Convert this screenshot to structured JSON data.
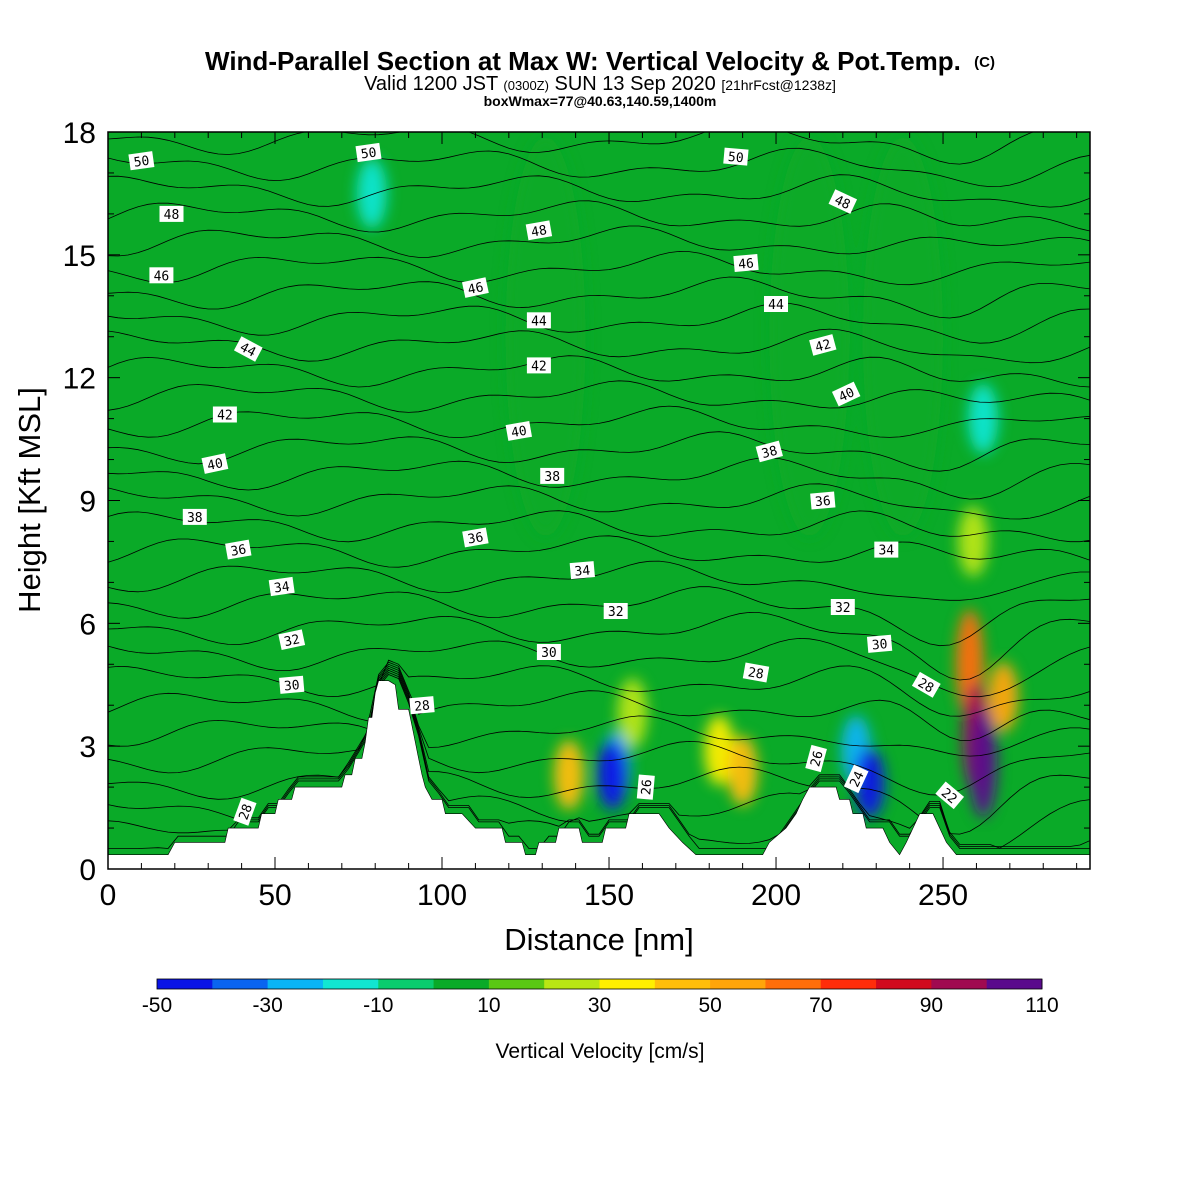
{
  "chart_data": {
    "type": "heatmap",
    "title": "Wind-Parallel Section at Max W: Vertical Velocity & Pot.Temp.",
    "title_mark": "(C)",
    "subtitle_parts": {
      "valid": "Valid 1200 JST",
      "utc": "(0300Z)",
      "date": "SUN 13 Sep 2020",
      "forecast": "[21hrFcst@1238z]"
    },
    "subtitle2": "boxWmax=77@40.63,140.59,1400m",
    "xlabel": "Distance [nm]",
    "ylabel": "Height [Kft MSL]",
    "xlim": [
      0,
      294
    ],
    "ylim": [
      0,
      18
    ],
    "x_ticks": [
      0,
      50,
      100,
      150,
      200,
      250
    ],
    "y_ticks": [
      0,
      3,
      6,
      9,
      12,
      15,
      18
    ],
    "colorbar": {
      "title": "Vertical Velocity [cm/s]",
      "boundaries": [
        -50,
        -40,
        -30,
        -20,
        -10,
        0,
        10,
        20,
        30,
        40,
        50,
        60,
        70,
        80,
        90,
        100,
        110
      ],
      "tick_labels": [
        -50,
        -30,
        -10,
        10,
        30,
        50,
        70,
        90,
        110
      ],
      "colors": [
        "#0a14e6",
        "#0a64f0",
        "#0ab4f5",
        "#12e6d2",
        "#0acd6e",
        "#0aaa28",
        "#5ac814",
        "#b9e614",
        "#ffef00",
        "#ffbe0a",
        "#ffa50a",
        "#ff6e0a",
        "#ff2d0a",
        "#d20a1e",
        "#a00a50",
        "#5a0a8c"
      ]
    },
    "terrain_height_kft": [
      [
        0,
        0.35
      ],
      [
        18,
        0.35
      ],
      [
        20,
        0.65
      ],
      [
        35,
        0.65
      ],
      [
        36,
        1.0
      ],
      [
        45,
        1.0
      ],
      [
        46,
        1.35
      ],
      [
        50,
        1.35
      ],
      [
        51,
        1.7
      ],
      [
        55,
        1.7
      ],
      [
        56,
        2.0
      ],
      [
        70,
        2.0
      ],
      [
        71,
        2.3
      ],
      [
        73,
        2.3
      ],
      [
        74,
        2.7
      ],
      [
        76,
        2.7
      ],
      [
        77,
        3.1
      ],
      [
        78,
        3.7
      ],
      [
        79,
        3.7
      ],
      [
        80,
        4.3
      ],
      [
        81,
        4.6
      ],
      [
        84,
        4.6
      ],
      [
        86,
        4.5
      ],
      [
        87,
        3.9
      ],
      [
        90,
        3.9
      ],
      [
        91,
        3.5
      ],
      [
        92,
        3.1
      ],
      [
        93,
        2.7
      ],
      [
        94,
        2.3
      ],
      [
        95,
        2.0
      ],
      [
        97,
        1.7
      ],
      [
        100,
        1.7
      ],
      [
        101,
        1.35
      ],
      [
        105,
        1.35
      ],
      [
        106,
        1.35
      ],
      [
        110,
        1.0
      ],
      [
        118,
        1.0
      ],
      [
        119,
        0.65
      ],
      [
        124,
        0.65
      ],
      [
        125,
        0.35
      ],
      [
        128,
        0.35
      ],
      [
        129,
        0.65
      ],
      [
        134,
        0.65
      ],
      [
        135,
        1.0
      ],
      [
        141,
        1.0
      ],
      [
        142,
        0.65
      ],
      [
        148,
        0.65
      ],
      [
        149,
        1.0
      ],
      [
        155,
        1.0
      ],
      [
        156,
        1.35
      ],
      [
        165,
        1.35
      ],
      [
        168,
        1.0
      ],
      [
        172,
        0.65
      ],
      [
        176,
        0.35
      ],
      [
        196,
        0.35
      ],
      [
        198,
        0.65
      ],
      [
        203,
        1.0
      ],
      [
        206,
        1.35
      ],
      [
        208,
        1.7
      ],
      [
        210,
        2.0
      ],
      [
        218,
        2.0
      ],
      [
        219,
        1.7
      ],
      [
        222,
        1.7
      ],
      [
        223,
        1.35
      ],
      [
        226,
        1.35
      ],
      [
        227,
        1.0
      ],
      [
        232,
        1.0
      ],
      [
        234,
        0.65
      ],
      [
        237,
        0.35
      ],
      [
        239,
        0.65
      ],
      [
        241,
        1.0
      ],
      [
        243,
        1.35
      ],
      [
        247,
        1.35
      ],
      [
        249,
        1.0
      ],
      [
        251,
        0.65
      ],
      [
        254,
        0.35
      ],
      [
        294,
        0.35
      ]
    ],
    "vertical_velocity_features": [
      {
        "x": 151,
        "z": 2.3,
        "w": -45
      },
      {
        "x": 152,
        "z": 2.5,
        "w": -30
      },
      {
        "x": 228,
        "z": 2.1,
        "w": -50
      },
      {
        "x": 224,
        "z": 2.9,
        "w": -30
      },
      {
        "x": 138,
        "z": 2.3,
        "w": 40
      },
      {
        "x": 157,
        "z": 3.8,
        "w": 25
      },
      {
        "x": 183,
        "z": 2.9,
        "w": 35
      },
      {
        "x": 190,
        "z": 2.4,
        "w": 40
      },
      {
        "x": 260,
        "z": 3.2,
        "w": 90
      },
      {
        "x": 262,
        "z": 2.6,
        "w": 100
      },
      {
        "x": 258,
        "z": 5.0,
        "w": 60
      },
      {
        "x": 268,
        "z": 4.2,
        "w": 50
      },
      {
        "x": 79,
        "z": 16.5,
        "w": -15
      },
      {
        "x": 262,
        "z": 11.0,
        "w": -15
      },
      {
        "x": 259,
        "z": 8.0,
        "w": 25
      },
      {
        "x": 210,
        "z": 13.0,
        "w": 2
      },
      {
        "x": 238,
        "z": 13.0,
        "w": 2
      },
      {
        "x": 131,
        "z": 13.0,
        "w": 2
      }
    ],
    "theta_contours": {
      "levels": [
        22,
        23,
        24,
        25,
        26,
        27,
        28,
        29,
        30,
        31,
        32,
        33,
        34,
        35,
        36,
        37,
        38,
        39,
        40,
        41,
        42,
        43,
        44,
        45,
        46,
        47,
        48,
        49,
        50
      ],
      "labels": [
        {
          "text": "50",
          "x": 10,
          "z": 17.3,
          "angle": -8
        },
        {
          "text": "50",
          "x": 78,
          "z": 17.5,
          "angle": -8
        },
        {
          "text": "50",
          "x": 188,
          "z": 17.4,
          "angle": 5
        },
        {
          "text": "48",
          "x": 19,
          "z": 16.0,
          "angle": 0
        },
        {
          "text": "48",
          "x": 129,
          "z": 15.6,
          "angle": -10
        },
        {
          "text": "48",
          "x": 220,
          "z": 16.3,
          "angle": 25
        },
        {
          "text": "46",
          "x": 16,
          "z": 14.5,
          "angle": 0
        },
        {
          "text": "46",
          "x": 110,
          "z": 14.2,
          "angle": -12
        },
        {
          "text": "46",
          "x": 191,
          "z": 14.8,
          "angle": -5
        },
        {
          "text": "44",
          "x": 42,
          "z": 12.7,
          "angle": 28
        },
        {
          "text": "44",
          "x": 129,
          "z": 13.4,
          "angle": 0
        },
        {
          "text": "44",
          "x": 200,
          "z": 13.8,
          "angle": 0
        },
        {
          "text": "42",
          "x": 35,
          "z": 11.1,
          "angle": 0
        },
        {
          "text": "42",
          "x": 129,
          "z": 12.3,
          "angle": 0
        },
        {
          "text": "42",
          "x": 214,
          "z": 12.8,
          "angle": -15
        },
        {
          "text": "40",
          "x": 32,
          "z": 9.9,
          "angle": -12
        },
        {
          "text": "40",
          "x": 123,
          "z": 10.7,
          "angle": -10
        },
        {
          "text": "40",
          "x": 221,
          "z": 11.6,
          "angle": -25
        },
        {
          "text": "38",
          "x": 26,
          "z": 8.6,
          "angle": 0
        },
        {
          "text": "38",
          "x": 133,
          "z": 9.6,
          "angle": 0
        },
        {
          "text": "38",
          "x": 198,
          "z": 10.2,
          "angle": -15
        },
        {
          "text": "36",
          "x": 39,
          "z": 7.8,
          "angle": -10
        },
        {
          "text": "36",
          "x": 110,
          "z": 8.1,
          "angle": -10
        },
        {
          "text": "36",
          "x": 214,
          "z": 9.0,
          "angle": -5
        },
        {
          "text": "34",
          "x": 52,
          "z": 6.9,
          "angle": -8
        },
        {
          "text": "34",
          "x": 142,
          "z": 7.3,
          "angle": -5
        },
        {
          "text": "34",
          "x": 233,
          "z": 7.8,
          "angle": 0
        },
        {
          "text": "32",
          "x": 55,
          "z": 5.6,
          "angle": -12
        },
        {
          "text": "32",
          "x": 152,
          "z": 6.3,
          "angle": 0
        },
        {
          "text": "32",
          "x": 220,
          "z": 6.4,
          "angle": 0
        },
        {
          "text": "30",
          "x": 55,
          "z": 4.5,
          "angle": -5
        },
        {
          "text": "30",
          "x": 132,
          "z": 5.3,
          "angle": 0
        },
        {
          "text": "30",
          "x": 231,
          "z": 5.5,
          "angle": -5
        },
        {
          "text": "28",
          "x": 94,
          "z": 4.0,
          "angle": -5
        },
        {
          "text": "28",
          "x": 194,
          "z": 4.8,
          "angle": 10
        },
        {
          "text": "28",
          "x": 245,
          "z": 4.5,
          "angle": 30
        },
        {
          "text": "28",
          "x": 41,
          "z": 1.4,
          "angle": -70
        },
        {
          "text": "26",
          "x": 161,
          "z": 2.0,
          "angle": -85
        },
        {
          "text": "26",
          "x": 212,
          "z": 2.7,
          "angle": -75
        },
        {
          "text": "24",
          "x": 224,
          "z": 2.2,
          "angle": -65
        },
        {
          "text": "22",
          "x": 252,
          "z": 1.8,
          "angle": 40
        }
      ]
    }
  }
}
